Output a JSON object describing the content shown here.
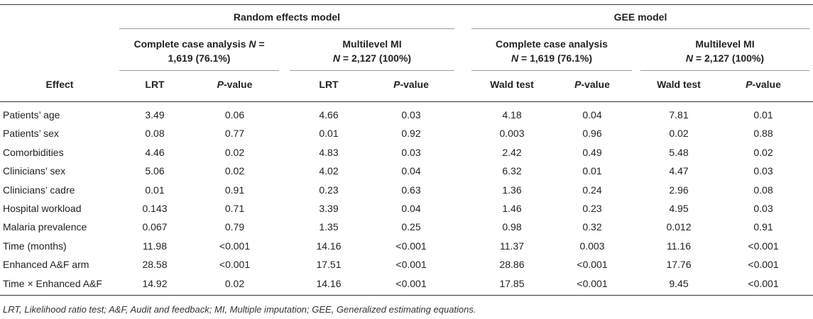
{
  "table": {
    "group_headers": [
      "Random effects model",
      "GEE model"
    ],
    "sub_headers": [
      {
        "line1": "Complete case analysis N =",
        "line2": "1,619 (76.1%)"
      },
      {
        "line1": "Multilevel MI",
        "line2": "N = 2,127 (100%)"
      },
      {
        "line1": "Complete case analysis",
        "line2": "N = 1,619 (76.1%)"
      },
      {
        "line1": "Multilevel MI",
        "line2": "N = 2,127 (100%)"
      }
    ],
    "column_headers": [
      "Effect",
      "LRT",
      "P-value",
      "LRT",
      "P-value",
      "Wald test",
      "P-value",
      "Wald test",
      "P-value"
    ],
    "rows": [
      {
        "effect": "Patients’ age",
        "values": [
          "3.49",
          "0.06",
          "4.66",
          "0.03",
          "4.18",
          "0.04",
          "7.81",
          "0.01"
        ]
      },
      {
        "effect": "Patients’ sex",
        "values": [
          "0.08",
          "0.77",
          "0.01",
          "0.92",
          "0.003",
          "0.96",
          "0.02",
          "0.88"
        ]
      },
      {
        "effect": "Comorbidities",
        "values": [
          "4.46",
          "0.02",
          "4.83",
          "0.03",
          "2.42",
          "0.49",
          "5.48",
          "0.02"
        ]
      },
      {
        "effect": "Clinicians’ sex",
        "values": [
          "5.06",
          "0.02",
          "4.02",
          "0.04",
          "6.32",
          "0.01",
          "4.47",
          "0.03"
        ]
      },
      {
        "effect": "Clinicians’ cadre",
        "values": [
          "0.01",
          "0.91",
          "0.23",
          "0.63",
          "1.36",
          "0.24",
          "2.96",
          "0.08"
        ]
      },
      {
        "effect": "Hospital workload",
        "values": [
          "0.143",
          "0.71",
          "3.39",
          "0.04",
          "1.46",
          "0.23",
          "4.95",
          "0.03"
        ]
      },
      {
        "effect": "Malaria prevalence",
        "values": [
          "0.067",
          "0.79",
          "1.35",
          "0.25",
          "0.98",
          "0.32",
          "0.012",
          "0.91"
        ]
      },
      {
        "effect": "Time (months)",
        "values": [
          "11.98",
          "<0.001",
          "14.16",
          "<0.001",
          "11.37",
          "0.003",
          "11.16",
          "<0.001"
        ]
      },
      {
        "effect": "Enhanced A&F arm",
        "values": [
          "28.58",
          "<0.001",
          "17.51",
          "<0.001",
          "28.86",
          "<0.001",
          "17.76",
          "<0.001"
        ]
      },
      {
        "effect": "Time × Enhanced A&F",
        "values": [
          "14.92",
          "0.02",
          "14.16",
          "<0.001",
          "17.85",
          "<0.001",
          "9.45",
          "<0.001"
        ]
      }
    ],
    "footnote": "LRT, Likelihood ratio test; A&F, Audit and feedback; MI, Multiple imputation; GEE, Generalized estimating equations."
  }
}
